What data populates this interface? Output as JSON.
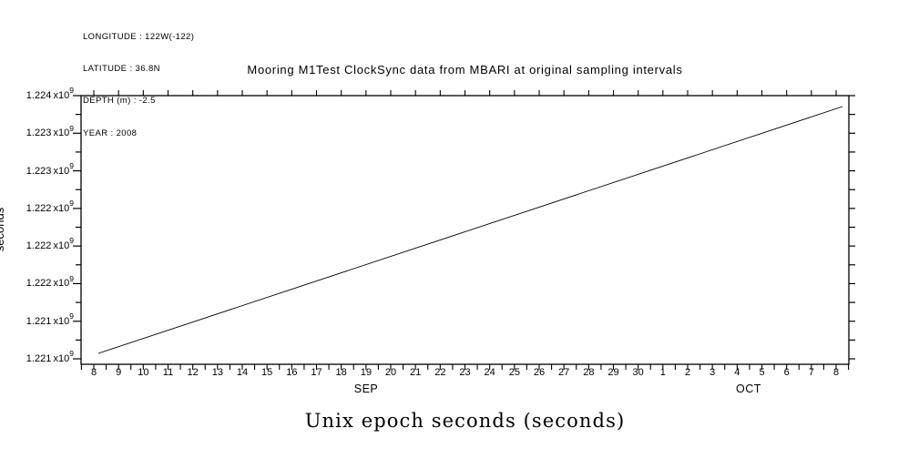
{
  "page": {
    "background_color": "#ffffff",
    "ink_color": "#000000"
  },
  "header": {
    "metadata_lines": [
      "LONGITUDE : 122W(-122)",
      "LATITUDE : 36.8N",
      "DEPTH (m) : -2.5",
      "YEAR : 2008"
    ],
    "title": "Mooring M1Test ClockSync data from MBARI at original sampling intervals"
  },
  "axes": {
    "y_axis": {
      "rotated_label": "seconds",
      "tick_mantissas": [
        "1.224",
        "1.223",
        "1.223",
        "1.222",
        "1.222",
        "1.222",
        "1.221",
        "1.221"
      ],
      "exponent_prefix": "x10",
      "exponent": "9"
    },
    "x_axis": {
      "day_tick_labels": [
        "8",
        "9",
        "10",
        "11",
        "12",
        "13",
        "14",
        "15",
        "16",
        "17",
        "18",
        "19",
        "20",
        "21",
        "22",
        "23",
        "24",
        "25",
        "26",
        "27",
        "28",
        "29",
        "30",
        "1",
        "2",
        "3",
        "4",
        "5",
        "6",
        "7",
        "8"
      ],
      "month_labels": [
        "SEP",
        "OCT"
      ],
      "axis_title": "Unix epoch seconds (seconds)"
    }
  },
  "chart_data": {
    "type": "line",
    "title": "Mooring M1Test ClockSync data from MBARI at original sampling intervals",
    "xlabel": "Unix epoch seconds (seconds)",
    "ylabel": "seconds",
    "x_range": [
      "2008-09-08",
      "2008-10-08"
    ],
    "x_tick_labels": [
      "8",
      "9",
      "10",
      "11",
      "12",
      "13",
      "14",
      "15",
      "16",
      "17",
      "18",
      "19",
      "20",
      "21",
      "22",
      "23",
      "24",
      "25",
      "26",
      "27",
      "28",
      "29",
      "30",
      "1",
      "2",
      "3",
      "4",
      "5",
      "6",
      "7",
      "8"
    ],
    "x_month_labels": [
      "SEP",
      "OCT"
    ],
    "y_tick_labels_top_to_bottom": [
      "1.224 x10^9",
      "1.223 x10^9",
      "1.223 x10^9",
      "1.222 x10^9",
      "1.222 x10^9",
      "1.222 x10^9",
      "1.221 x10^9",
      "1.221 x10^9"
    ],
    "ylim": [
      1220770000,
      1223600000
    ],
    "grid": false,
    "legend": false,
    "line_color": "#000000",
    "series": [
      {
        "name": "Unix epoch seconds",
        "shape": "linear",
        "points": [
          {
            "date": "2008-09-08",
            "value": 1220880000
          },
          {
            "date": "2008-09-15",
            "value": 1221480000
          },
          {
            "date": "2008-09-22",
            "value": 1222080000
          },
          {
            "date": "2008-09-29",
            "value": 1222690000
          },
          {
            "date": "2008-10-06",
            "value": 1223290000
          },
          {
            "date": "2008-10-08",
            "value": 1223470000
          }
        ]
      }
    ]
  }
}
